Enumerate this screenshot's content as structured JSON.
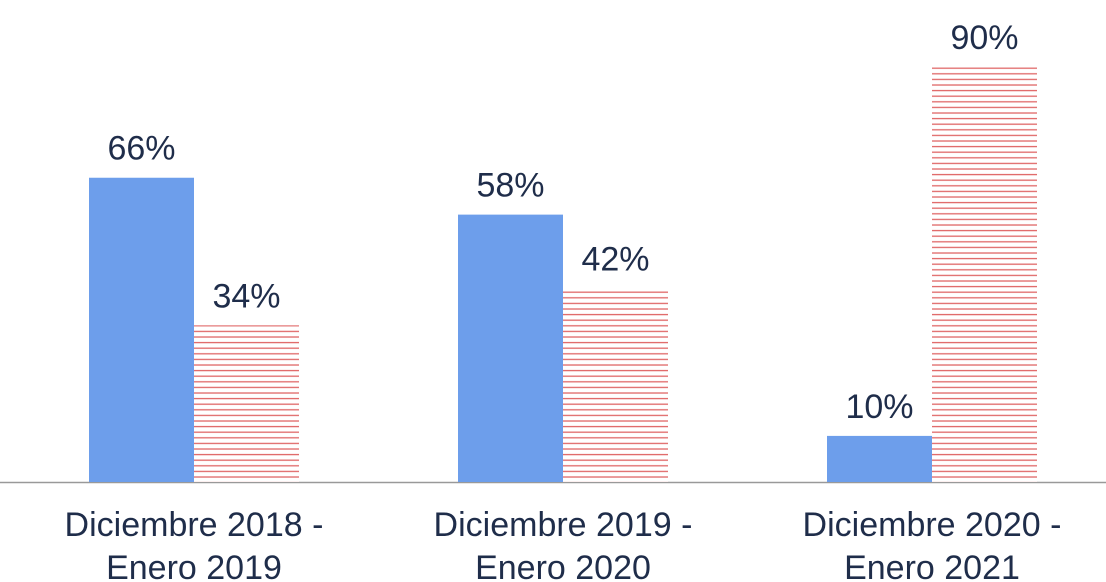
{
  "chart_data": {
    "type": "bar",
    "categories": [
      [
        "Diciembre 2018 -",
        "Enero 2019"
      ],
      [
        "Diciembre 2019 -",
        "Enero 2020"
      ],
      [
        "Diciembre 2020 -",
        "Enero 2021"
      ]
    ],
    "series": [
      {
        "color": "#6d9eeb",
        "values": [
          66,
          58,
          10
        ],
        "value_labels": [
          "66%",
          "58%",
          "10%"
        ]
      },
      {
        "color": "#e06666",
        "pattern": "horizontal-hatch",
        "values": [
          34,
          42,
          90
        ],
        "value_labels": [
          "34%",
          "42%",
          "90%"
        ]
      }
    ]
  }
}
